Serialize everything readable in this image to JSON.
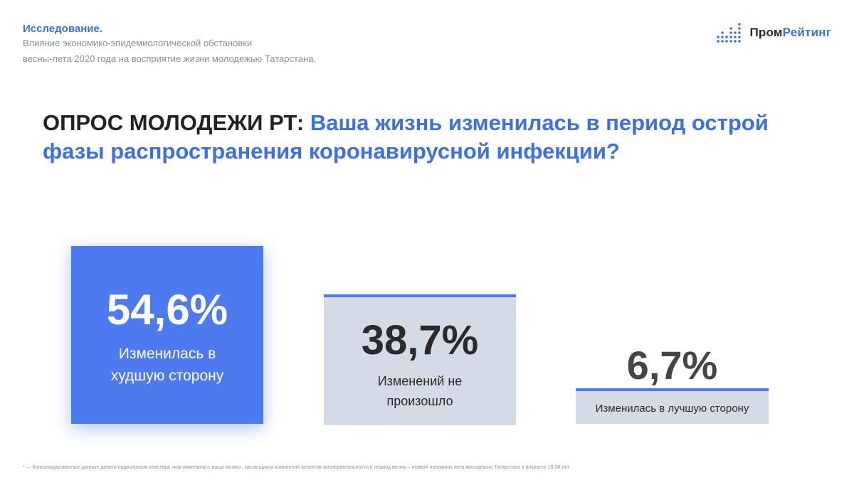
{
  "header": {
    "kicker": "Исследование.",
    "subtitle_line1": "Влияние экономико-эпидемиологической обстановки",
    "subtitle_line2": "весны-лета 2020 года на восприятие жизни молодежью Татарстана."
  },
  "logo": {
    "part1": "Пром",
    "part2": "Рейтинг",
    "icon": "bar-dots-icon",
    "accent": "#3d6fe5"
  },
  "title": {
    "dark": "ОПРОС МОЛОДЕЖИ РТ: ",
    "blue": "Ваша жизнь изменилась в период острой фазы распространения коронавирусной инфекции?"
  },
  "chart_data": {
    "type": "bar",
    "categories": [
      "Изменилась в худшую сторону",
      "Изменений не произошло",
      "Изменилась в лучшую сторону"
    ],
    "values": [
      54.6,
      38.7,
      6.7
    ],
    "value_labels": [
      "54,6%",
      "38,7%",
      "6,7%"
    ],
    "unit": "%",
    "colors": {
      "highlight": "#4d7aee",
      "base": "#d5dbe6",
      "accent_line": "#4d7aee"
    }
  },
  "cards": [
    {
      "value": "54,6%",
      "label": "Изменилась в\nхудшую сторону"
    },
    {
      "value": "38,7%",
      "label": "Изменений не\nпроизошло"
    },
    {
      "value": "6,7%",
      "label": "Изменилась в лучшую сторону"
    }
  ],
  "footnote": "* — Консолидированные данные девяти подвопросов кластера «как изменилась ваша жизнь», касающихся изменений аспектов жизнедеятельности в период весны – первой половины лета молодежью Татарстана в возрасте 18-30 лет."
}
